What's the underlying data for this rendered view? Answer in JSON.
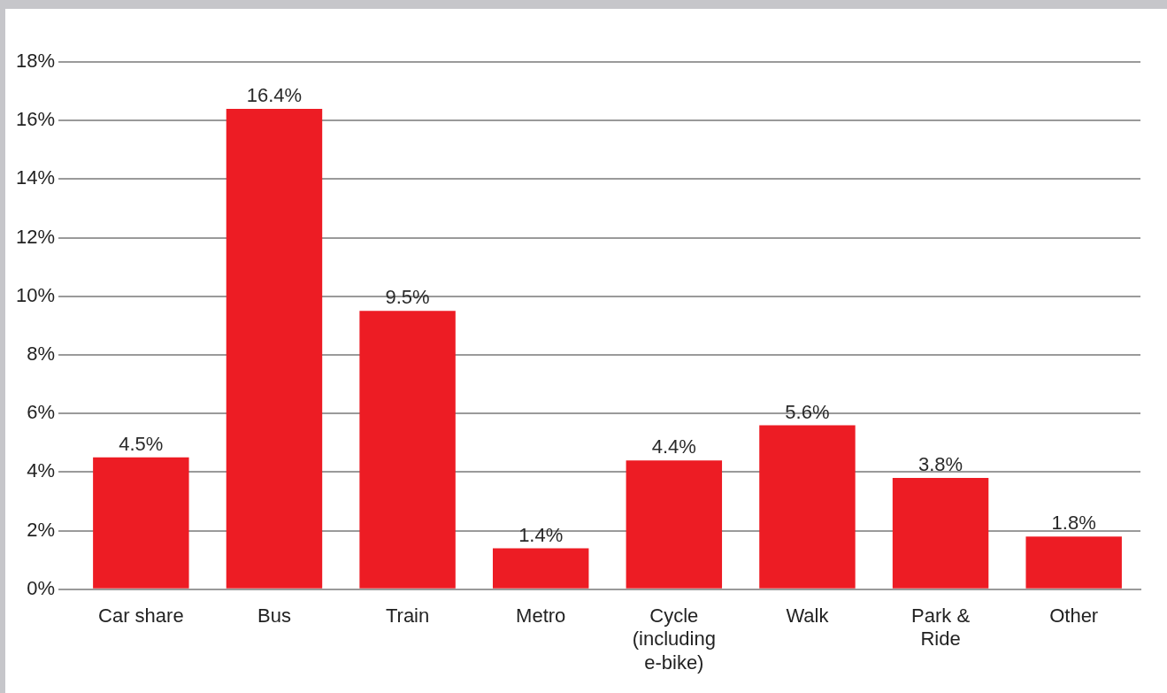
{
  "chart_data": {
    "type": "bar",
    "categories": [
      "Car share",
      "Bus",
      "Train",
      "Metro",
      "Cycle (including e-bike)",
      "Walk",
      "Park & Ride",
      "Other"
    ],
    "values": [
      4.5,
      16.4,
      9.5,
      1.4,
      4.4,
      5.6,
      3.8,
      1.8
    ],
    "value_labels": [
      "4.5%",
      "16.4%",
      "9.5%",
      "1.4%",
      "4.4%",
      "5.6%",
      "3.8%",
      "1.8%"
    ],
    "color": "#ed1c24",
    "ylim": [
      0,
      18
    ],
    "yticks": [
      {
        "value": 0,
        "label": "0%"
      },
      {
        "value": 2,
        "label": "2%"
      },
      {
        "value": 4,
        "label": "4%"
      },
      {
        "value": 6,
        "label": "6%"
      },
      {
        "value": 8,
        "label": "8%"
      },
      {
        "value": 10,
        "label": "10%"
      },
      {
        "value": 12,
        "label": "12%"
      },
      {
        "value": 14,
        "label": "14%"
      },
      {
        "value": 16,
        "label": "16%"
      },
      {
        "value": 18,
        "label": "18%"
      }
    ],
    "grid": "y",
    "legend": false
  }
}
